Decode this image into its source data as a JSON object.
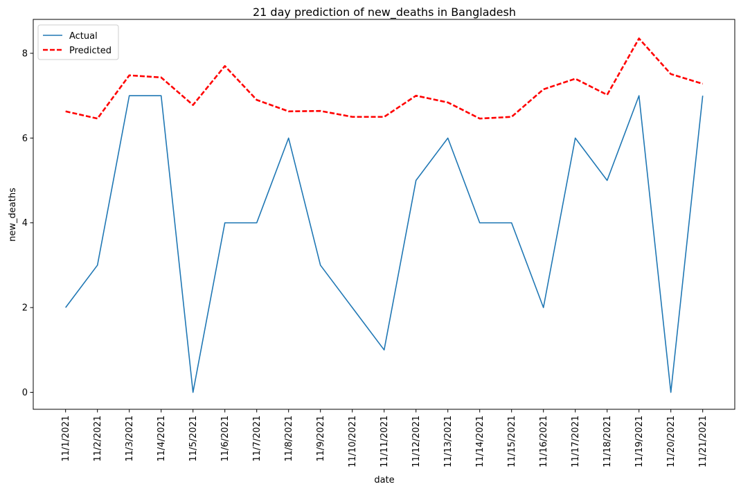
{
  "chart_data": {
    "type": "line",
    "title": "21 day prediction of new_deaths in Bangladesh",
    "xlabel": "date",
    "ylabel": "new_deaths",
    "categories": [
      "11/1/2021",
      "11/2/2021",
      "11/3/2021",
      "11/4/2021",
      "11/5/2021",
      "11/6/2021",
      "11/7/2021",
      "11/8/2021",
      "11/9/2021",
      "11/10/2021",
      "11/11/2021",
      "11/12/2021",
      "11/13/2021",
      "11/14/2021",
      "11/15/2021",
      "11/16/2021",
      "11/17/2021",
      "11/18/2021",
      "11/19/2021",
      "11/20/2021",
      "11/21/2021"
    ],
    "ylim": [
      -0.4,
      8.8
    ],
    "yticks": [
      0,
      2,
      4,
      6,
      8
    ],
    "grid": false,
    "legend_position": "top-left",
    "series": [
      {
        "name": "Actual",
        "color": "#1f77b4",
        "style": "solid",
        "values": [
          2,
          3,
          7,
          7,
          0,
          4,
          4,
          6,
          3,
          2,
          1,
          5,
          6,
          4,
          4,
          2,
          6,
          5,
          7,
          0,
          7
        ]
      },
      {
        "name": "Predicted",
        "color": "#ff0000",
        "style": "dashed",
        "values": [
          6.63,
          6.46,
          7.48,
          7.43,
          6.78,
          7.7,
          6.9,
          6.63,
          6.64,
          6.5,
          6.5,
          7.0,
          6.84,
          6.46,
          6.5,
          7.15,
          7.4,
          7.02,
          8.35,
          7.51,
          7.28
        ]
      }
    ]
  }
}
